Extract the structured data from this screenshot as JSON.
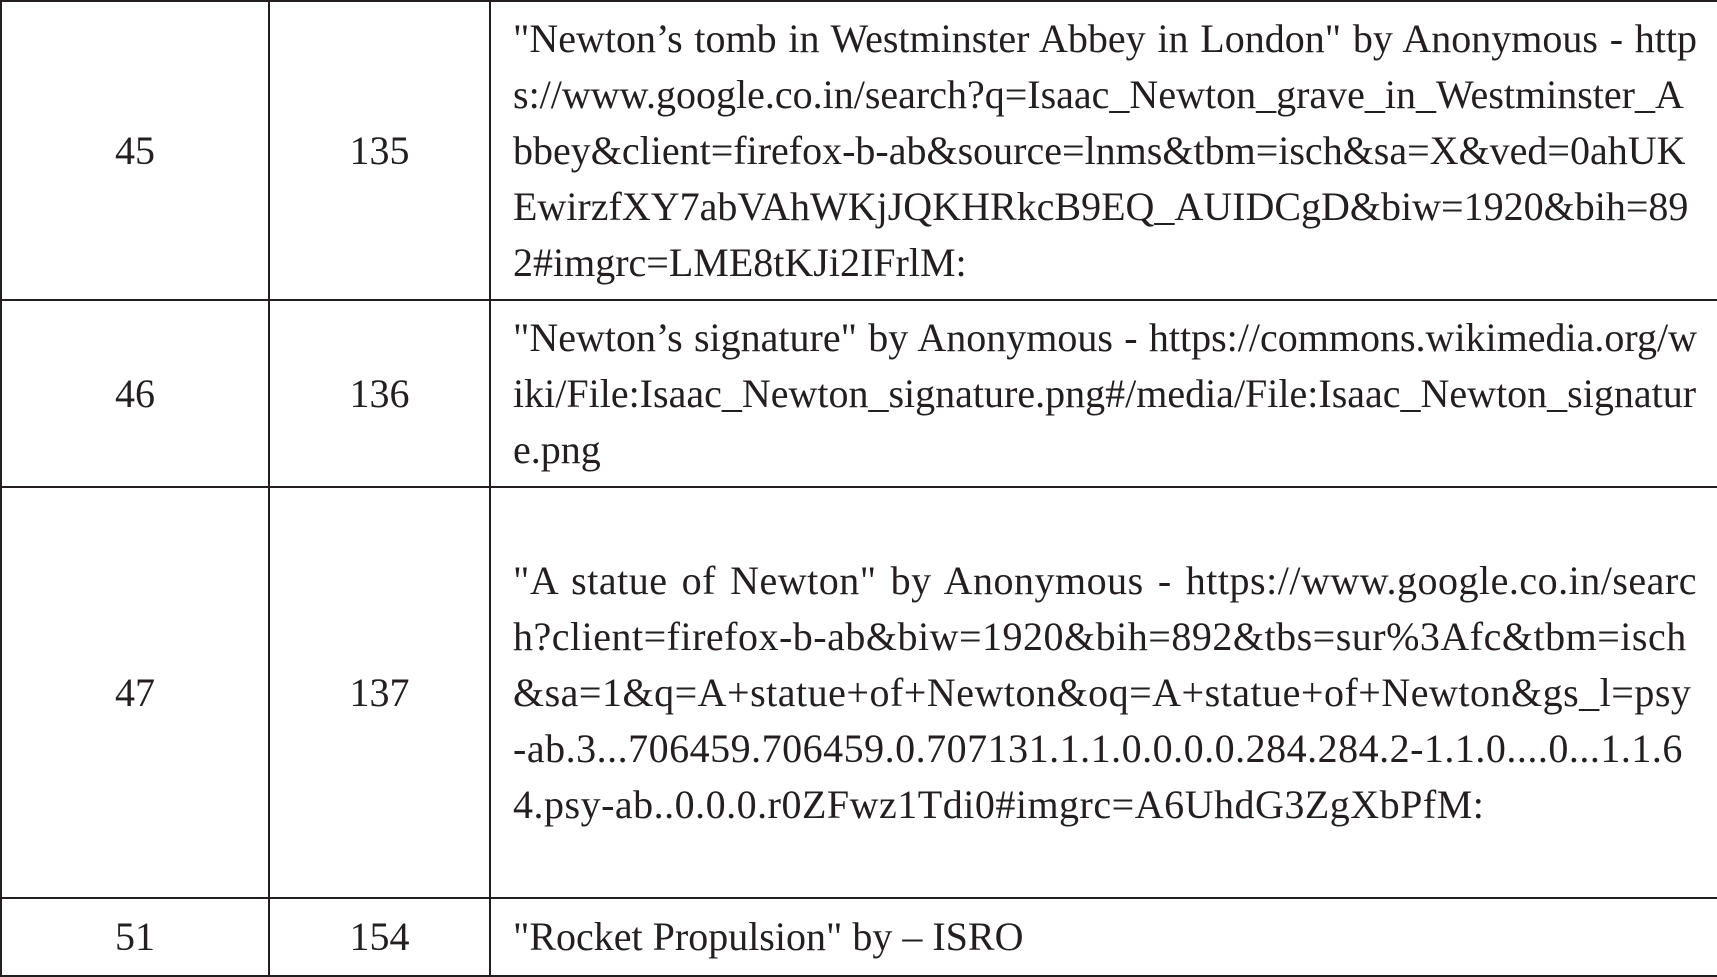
{
  "rows": [
    {
      "serial": "45",
      "page": "135",
      "credit": "\"Newton’s tomb in Westminster Abbey in London\" by Anonymous - https://www.google.co.in/search?q=Isaac_Newton_grave_in_Westminster_Abbey&client=firefox-b-ab&source=lnms&tbm=isch&sa=X&ved=0ahUKEwirzfXY7abVAhWKjJQKHRkcB9EQ_AUIDCgD&biw=1920&bih=892#imgrc=LME8tKJi2IFrlM:"
    },
    {
      "serial": "46",
      "page": "136",
      "credit": "\"Newton’s signature\" by Anonymous - https://commons.wikimedia.org/wiki/File:Isaac_Newton_signature.png#/media/File:Isaac_Newton_signature.png"
    },
    {
      "serial": "47",
      "page": "137",
      "credit": "\"A statue of Newton\" by Anonymous - https://www.google.co.in/search?client=firefox-b-ab&biw=1920&bih=892&tbs=sur%3Afc&tbm=isch&sa=1&q=A+statue+of+Newton&oq=A+statue+of+Newton&gs_l=psy-ab.3...706459.706459.0.707131.1.1.0.0.0.0.284.284.2-1.1.0....0...1.1.64.psy-ab..0.0.0.r0ZFwz1Tdi0#imgrc=A6UhdG3ZgXbPfM:"
    },
    {
      "serial": "51",
      "page": "154",
      "credit": "\"Rocket Propulsion\" by – ISRO"
    }
  ]
}
